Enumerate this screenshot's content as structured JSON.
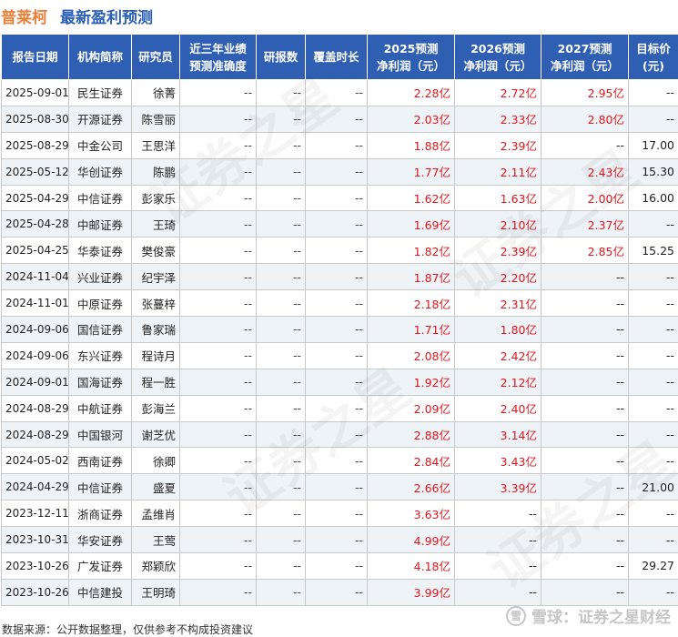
{
  "header": {
    "company": "普莱柯",
    "title": "最新盈利预测"
  },
  "columns": [
    "报告日期",
    "机构简称",
    "研究员",
    "近三年业绩预测准确度",
    "研报数",
    "覆盖时长",
    "2025预测净利润（元）",
    "2026预测净利润（元）",
    "2027预测净利润（元）",
    "目标价（元）"
  ],
  "header_lines": [
    [
      "报告日期"
    ],
    [
      "机构简称"
    ],
    [
      "研究员"
    ],
    [
      "近三年业绩",
      "预测准确度"
    ],
    [
      "研报数"
    ],
    [
      "覆盖时长"
    ],
    [
      "2025预测",
      "净利润（元）"
    ],
    [
      "2026预测",
      "净利润（元）"
    ],
    [
      "2027预测",
      "净利润（元）"
    ],
    [
      "目标价",
      "(元)"
    ]
  ],
  "rows": [
    [
      "2025-09-01",
      "民生证券",
      "徐菁",
      "--",
      "--",
      "--",
      "2.28亿",
      "2.72亿",
      "2.95亿",
      "--"
    ],
    [
      "2025-08-30",
      "开源证券",
      "陈雪丽",
      "--",
      "--",
      "--",
      "2.03亿",
      "2.33亿",
      "2.80亿",
      "--"
    ],
    [
      "2025-08-29",
      "中金公司",
      "王思洋",
      "--",
      "--",
      "--",
      "1.88亿",
      "2.39亿",
      "--",
      "17.00"
    ],
    [
      "2025-05-12",
      "华创证券",
      "陈鹏",
      "--",
      "--",
      "--",
      "1.77亿",
      "2.11亿",
      "2.43亿",
      "15.30"
    ],
    [
      "2025-04-29",
      "中信证券",
      "彭家乐",
      "--",
      "--",
      "--",
      "1.62亿",
      "1.63亿",
      "2.00亿",
      "16.00"
    ],
    [
      "2025-04-28",
      "中邮证券",
      "王琦",
      "--",
      "--",
      "--",
      "1.69亿",
      "2.10亿",
      "2.37亿",
      "--"
    ],
    [
      "2025-04-25",
      "华泰证券",
      "樊俊豪",
      "--",
      "--",
      "--",
      "1.82亿",
      "2.39亿",
      "2.85亿",
      "15.25"
    ],
    [
      "2024-11-04",
      "兴业证券",
      "纪宇泽",
      "--",
      "--",
      "--",
      "1.87亿",
      "2.20亿",
      "--",
      "--"
    ],
    [
      "2024-11-01",
      "中原证券",
      "张蔓梓",
      "--",
      "--",
      "--",
      "2.18亿",
      "2.31亿",
      "--",
      "--"
    ],
    [
      "2024-09-06",
      "国信证券",
      "鲁家瑞",
      "--",
      "--",
      "--",
      "1.71亿",
      "1.80亿",
      "--",
      "--"
    ],
    [
      "2024-09-06",
      "东兴证券",
      "程诗月",
      "--",
      "--",
      "--",
      "2.08亿",
      "2.42亿",
      "--",
      "--"
    ],
    [
      "2024-09-01",
      "国海证券",
      "程一胜",
      "--",
      "--",
      "--",
      "1.92亿",
      "2.12亿",
      "--",
      "--"
    ],
    [
      "2024-08-29",
      "中航证券",
      "彭海兰",
      "--",
      "--",
      "--",
      "2.09亿",
      "2.40亿",
      "--",
      "--"
    ],
    [
      "2024-08-29",
      "中国银河",
      "谢芝优",
      "--",
      "--",
      "--",
      "2.88亿",
      "3.14亿",
      "--",
      "--"
    ],
    [
      "2024-05-02",
      "西南证券",
      "徐卿",
      "--",
      "--",
      "--",
      "2.84亿",
      "3.43亿",
      "--",
      "--"
    ],
    [
      "2024-04-29",
      "中信证券",
      "盛夏",
      "--",
      "--",
      "--",
      "2.66亿",
      "3.39亿",
      "--",
      "21.00"
    ],
    [
      "2023-12-11",
      "浙商证券",
      "孟维肖",
      "--",
      "--",
      "--",
      "3.63亿",
      "--",
      "--",
      "--"
    ],
    [
      "2023-10-31",
      "华安证券",
      "王莺",
      "--",
      "--",
      "--",
      "4.99亿",
      "--",
      "--",
      "--"
    ],
    [
      "2023-10-26",
      "广发证券",
      "郑颖欣",
      "--",
      "--",
      "--",
      "4.18亿",
      "--",
      "--",
      "29.27"
    ],
    [
      "2023-10-26",
      "中信建投",
      "王明琦",
      "--",
      "--",
      "--",
      "3.99亿",
      "--",
      "--",
      "--"
    ]
  ],
  "footer": {
    "source": "数据来源：公开数据整理，仅供参考不构成投资建议"
  },
  "brand": {
    "logo_text": "雪",
    "name": "雪球：证券之星财经"
  },
  "watermark": {
    "text": "证券之星"
  },
  "colors": {
    "header_bg": "#2f5fb3",
    "value_red": "#e0161c",
    "company": "#e8803a",
    "title": "#2a5fb8"
  }
}
